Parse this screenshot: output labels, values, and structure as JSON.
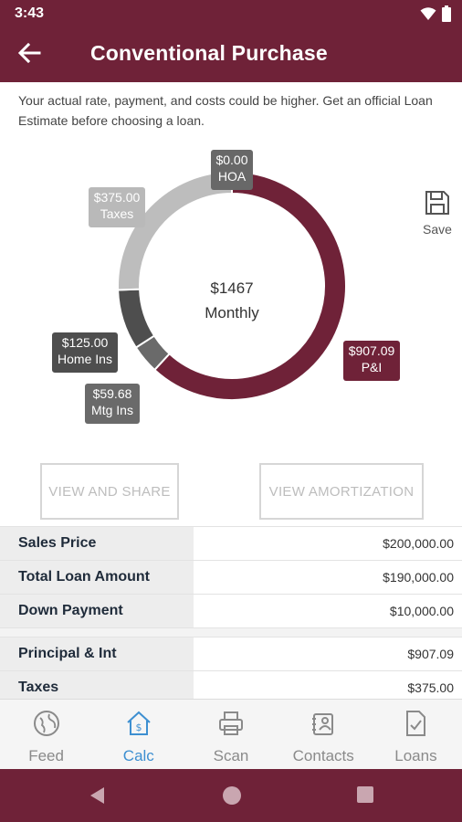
{
  "status_bar": {
    "time": "3:43",
    "wifi_icon": "wifi-icon",
    "battery_icon": "battery-icon"
  },
  "app_bar": {
    "title": "Conventional Purchase",
    "back_icon": "arrow-left-icon"
  },
  "disclaimer": "Your actual rate, payment, and costs could be higher. Get an official Loan Estimate before choosing a loan.",
  "chart_data": {
    "type": "pie",
    "center_amount": "$1467",
    "center_label": "Monthly",
    "slices": [
      {
        "label": "P&I",
        "amount": "$907.09",
        "value": 907.09,
        "color": "#6f2238"
      },
      {
        "label": "Mtg Ins",
        "amount": "$59.68",
        "value": 59.68,
        "color": "#6a6a6a"
      },
      {
        "label": "Home Ins",
        "amount": "$125.00",
        "value": 125.0,
        "color": "#4e4e4e"
      },
      {
        "label": "Taxes",
        "amount": "$375.00",
        "value": 375.0,
        "color": "#bdbdbd"
      },
      {
        "label": "HOA",
        "amount": "$0.00",
        "value": 0.0,
        "color": "#686868"
      }
    ]
  },
  "save": {
    "label": "Save",
    "icon": "floppy-disk-icon"
  },
  "buttons": {
    "view_share": "VIEW AND SHARE",
    "view_amortization": "VIEW AMORTIZATION"
  },
  "table": {
    "group1": [
      {
        "label": "Sales Price",
        "value": "$200,000.00"
      },
      {
        "label": "Total Loan Amount",
        "value": "$190,000.00"
      },
      {
        "label": "Down Payment",
        "value": "$10,000.00"
      }
    ],
    "group2": [
      {
        "label": "Principal & Int",
        "value": "$907.09"
      },
      {
        "label": "Taxes",
        "value": "$375.00"
      }
    ]
  },
  "bottom_nav": [
    {
      "label": "Feed",
      "icon": "globe-icon",
      "active": false
    },
    {
      "label": "Calc",
      "icon": "house-dollar-icon",
      "active": true
    },
    {
      "label": "Scan",
      "icon": "printer-icon",
      "active": false
    },
    {
      "label": "Contacts",
      "icon": "contacts-icon",
      "active": false
    },
    {
      "label": "Loans",
      "icon": "document-check-icon",
      "active": false
    }
  ],
  "colors": {
    "brand": "#6f2238",
    "active_nav": "#3d8fd1"
  }
}
